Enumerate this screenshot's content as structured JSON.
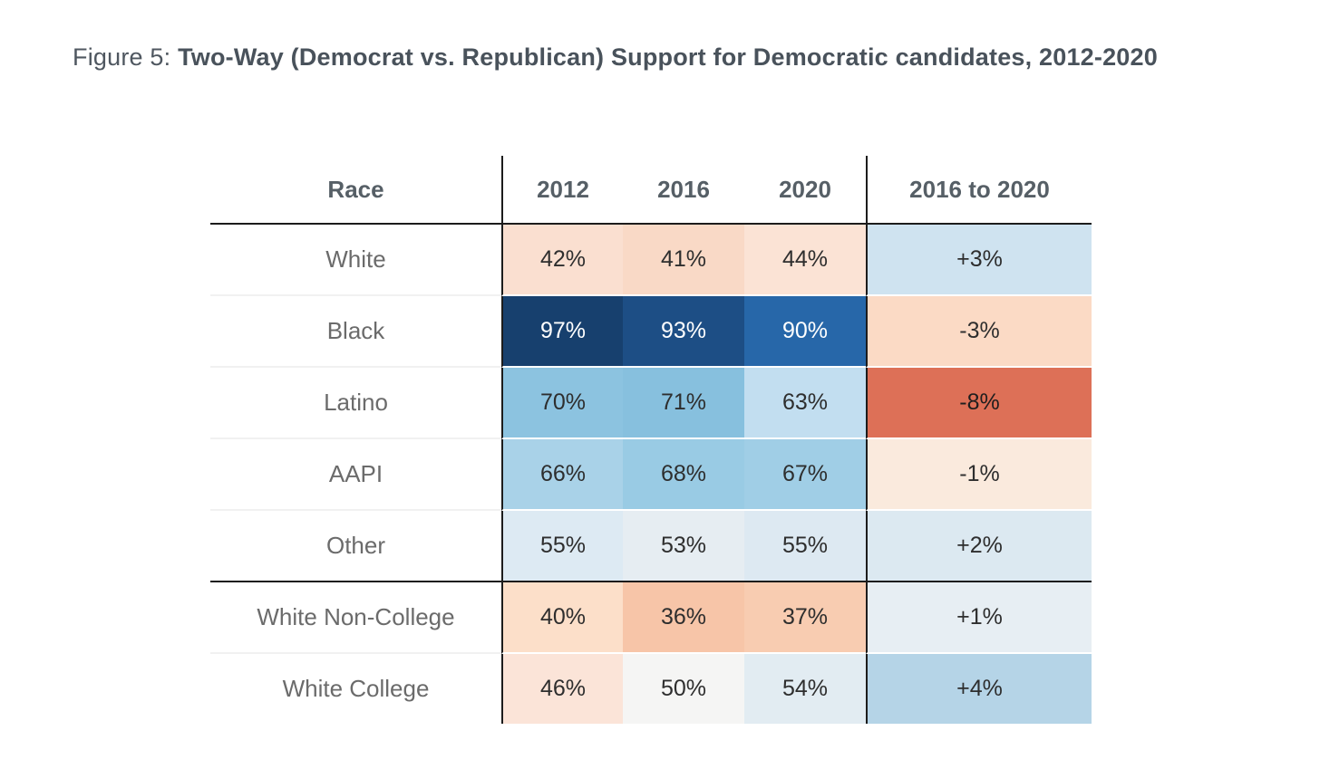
{
  "figure": {
    "label": "Figure 5:",
    "title": "Two-Way (Democrat vs. Republican) Support for Democratic candidates, 2012-2020"
  },
  "colors": {
    "strong_dem_blue": "#17406e",
    "strong_rep_red": "#dd7057",
    "grid_line": "#1c1c1c",
    "race_text": "#6b6b6b",
    "header_text": "#565f66"
  },
  "table": {
    "columns": [
      "Race",
      "2012",
      "2016",
      "2020",
      "2016 to 2020"
    ],
    "rows": [
      {
        "race": "White",
        "cells": [
          {
            "text": "42%",
            "bg": "#fadfd0",
            "fg": "#2e2e2e"
          },
          {
            "text": "41%",
            "bg": "#f9d9c6",
            "fg": "#2e2e2e"
          },
          {
            "text": "44%",
            "bg": "#fbe3d5",
            "fg": "#2e2e2e"
          },
          {
            "text": "+3%",
            "bg": "#cfe3f0",
            "fg": "#2e2e2e"
          }
        ]
      },
      {
        "race": "Black",
        "cells": [
          {
            "text": "97%",
            "bg": "#17406e",
            "fg": "#ffffff"
          },
          {
            "text": "93%",
            "bg": "#1d4e85",
            "fg": "#ffffff"
          },
          {
            "text": "90%",
            "bg": "#2767a9",
            "fg": "#ffffff"
          },
          {
            "text": "-3%",
            "bg": "#fbdac5",
            "fg": "#2e2e2e"
          }
        ]
      },
      {
        "race": "Latino",
        "cells": [
          {
            "text": "70%",
            "bg": "#8cc3e0",
            "fg": "#2e2e2e"
          },
          {
            "text": "71%",
            "bg": "#87c0de",
            "fg": "#2e2e2e"
          },
          {
            "text": "63%",
            "bg": "#c2def0",
            "fg": "#2e2e2e"
          },
          {
            "text": "-8%",
            "bg": "#dd7057",
            "fg": "#1e1e1e"
          }
        ]
      },
      {
        "race": "AAPI",
        "cells": [
          {
            "text": "66%",
            "bg": "#a9d2e8",
            "fg": "#2e2e2e"
          },
          {
            "text": "68%",
            "bg": "#99cbe4",
            "fg": "#2e2e2e"
          },
          {
            "text": "67%",
            "bg": "#a0cee6",
            "fg": "#2e2e2e"
          },
          {
            "text": "-1%",
            "bg": "#faeadd",
            "fg": "#2e2e2e"
          }
        ]
      },
      {
        "race": "Other",
        "cells": [
          {
            "text": "55%",
            "bg": "#ddeaf3",
            "fg": "#2e2e2e"
          },
          {
            "text": "53%",
            "bg": "#e6edf2",
            "fg": "#2e2e2e"
          },
          {
            "text": "55%",
            "bg": "#dde9f2",
            "fg": "#2e2e2e"
          },
          {
            "text": "+2%",
            "bg": "#dce9f1",
            "fg": "#2e2e2e"
          }
        ]
      },
      {
        "race": "White Non-College",
        "cells": [
          {
            "text": "40%",
            "bg": "#fcdfc9",
            "fg": "#2e2e2e"
          },
          {
            "text": "36%",
            "bg": "#f7c5a8",
            "fg": "#2e2e2e"
          },
          {
            "text": "37%",
            "bg": "#f8ccb1",
            "fg": "#2e2e2e"
          },
          {
            "text": "+1%",
            "bg": "#e7eef3",
            "fg": "#2e2e2e"
          }
        ]
      },
      {
        "race": "White College",
        "cells": [
          {
            "text": "46%",
            "bg": "#fbe4d8",
            "fg": "#2e2e2e"
          },
          {
            "text": "50%",
            "bg": "#f5f5f4",
            "fg": "#2e2e2e"
          },
          {
            "text": "54%",
            "bg": "#e2ecf2",
            "fg": "#2e2e2e"
          },
          {
            "text": "+4%",
            "bg": "#b5d4e7",
            "fg": "#2e2e2e"
          }
        ]
      }
    ]
  },
  "chart_data": {
    "type": "heatmap",
    "title": "Figure 5: Two-Way (Democrat vs. Republican) Support for Democratic candidates, 2012-2020",
    "row_label": "Race",
    "categories": [
      "White",
      "Black",
      "Latino",
      "AAPI",
      "Other",
      "White Non-College",
      "White College"
    ],
    "columns": [
      "2012",
      "2016",
      "2020",
      "2016 to 2020"
    ],
    "series": [
      {
        "name": "2012",
        "values": [
          42,
          97,
          70,
          66,
          55,
          40,
          46
        ]
      },
      {
        "name": "2016",
        "values": [
          41,
          93,
          71,
          68,
          53,
          36,
          50
        ]
      },
      {
        "name": "2020",
        "values": [
          44,
          90,
          63,
          67,
          55,
          37,
          54
        ]
      },
      {
        "name": "2016 to 2020",
        "values": [
          3,
          -3,
          -8,
          -1,
          2,
          1,
          4
        ]
      }
    ],
    "legend_position": "none",
    "color_scale": "diverging red (low/decline) to blue (high/gain), centered near 50% / 0 change"
  }
}
